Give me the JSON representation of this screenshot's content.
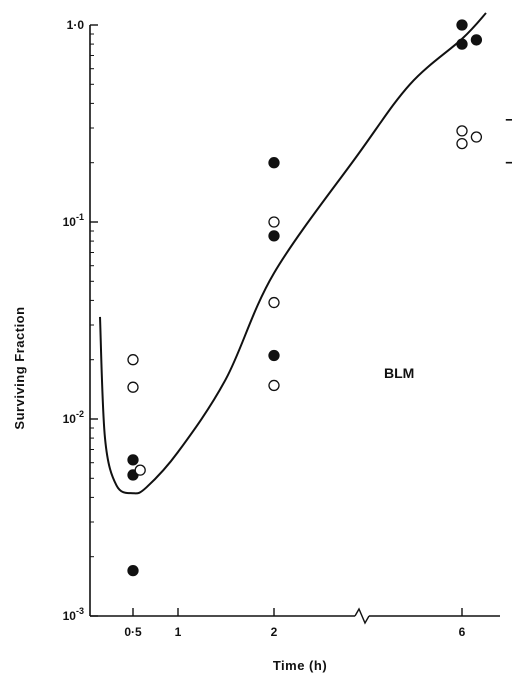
{
  "chart_data": {
    "type": "scatter",
    "title": "",
    "xlabel": "Time (h)",
    "ylabel": "Surviving Fraction",
    "y_scale": "log",
    "ylim": [
      0.001,
      1.0
    ],
    "x_ticks": [
      "0·5",
      "1",
      "2",
      "6"
    ],
    "y_ticks": [
      {
        "value": 1.0,
        "base": "1·0",
        "exp": ""
      },
      {
        "value": 0.1,
        "base": "10",
        "exp": "-1"
      },
      {
        "value": 0.01,
        "base": "10",
        "exp": "-2"
      },
      {
        "value": 0.001,
        "base": "10",
        "exp": "-3"
      }
    ],
    "axis_break": "between 2 and 6 h",
    "annotation": "BLM",
    "series": [
      {
        "marker": "filled-circle",
        "points": [
          {
            "x": 0.5,
            "y": 0.0062
          },
          {
            "x": 0.5,
            "y": 0.0052
          },
          {
            "x": 0.5,
            "y": 0.0017
          },
          {
            "x": 2,
            "y": 0.2
          },
          {
            "x": 2,
            "y": 0.085
          },
          {
            "x": 2,
            "y": 0.021
          },
          {
            "x": 6,
            "y": 1.0
          },
          {
            "x": 6,
            "y": 0.8
          },
          {
            "x": 6.3,
            "y": 0.84
          }
        ]
      },
      {
        "marker": "open-circle",
        "points": [
          {
            "x": 0.5,
            "y": 0.02
          },
          {
            "x": 0.5,
            "y": 0.0145
          },
          {
            "x": 0.58,
            "y": 0.0055
          },
          {
            "x": 2,
            "y": 0.1
          },
          {
            "x": 2,
            "y": 0.039
          },
          {
            "x": 2,
            "y": 0.0148
          },
          {
            "x": 6,
            "y": 0.29
          },
          {
            "x": 6,
            "y": 0.25
          },
          {
            "x": 6.3,
            "y": 0.27
          }
        ]
      }
    ],
    "fit_curve": [
      {
        "x": 0.3,
        "y": 0.033
      },
      {
        "x": 0.33,
        "y": 0.008
      },
      {
        "x": 0.4,
        "y": 0.0046
      },
      {
        "x": 0.5,
        "y": 0.0042
      },
      {
        "x": 0.65,
        "y": 0.0045
      },
      {
        "x": 1,
        "y": 0.0068
      },
      {
        "x": 1.5,
        "y": 0.016
      },
      {
        "x": 2,
        "y": 0.055
      },
      {
        "x": 3,
        "y": 0.22
      },
      {
        "x": 4.5,
        "y": 0.5
      },
      {
        "x": 6,
        "y": 0.85
      },
      {
        "x": 6.5,
        "y": 1.15
      }
    ],
    "bracket": {
      "x": 6.6,
      "y_low": 0.2,
      "y_high": 0.33
    }
  }
}
